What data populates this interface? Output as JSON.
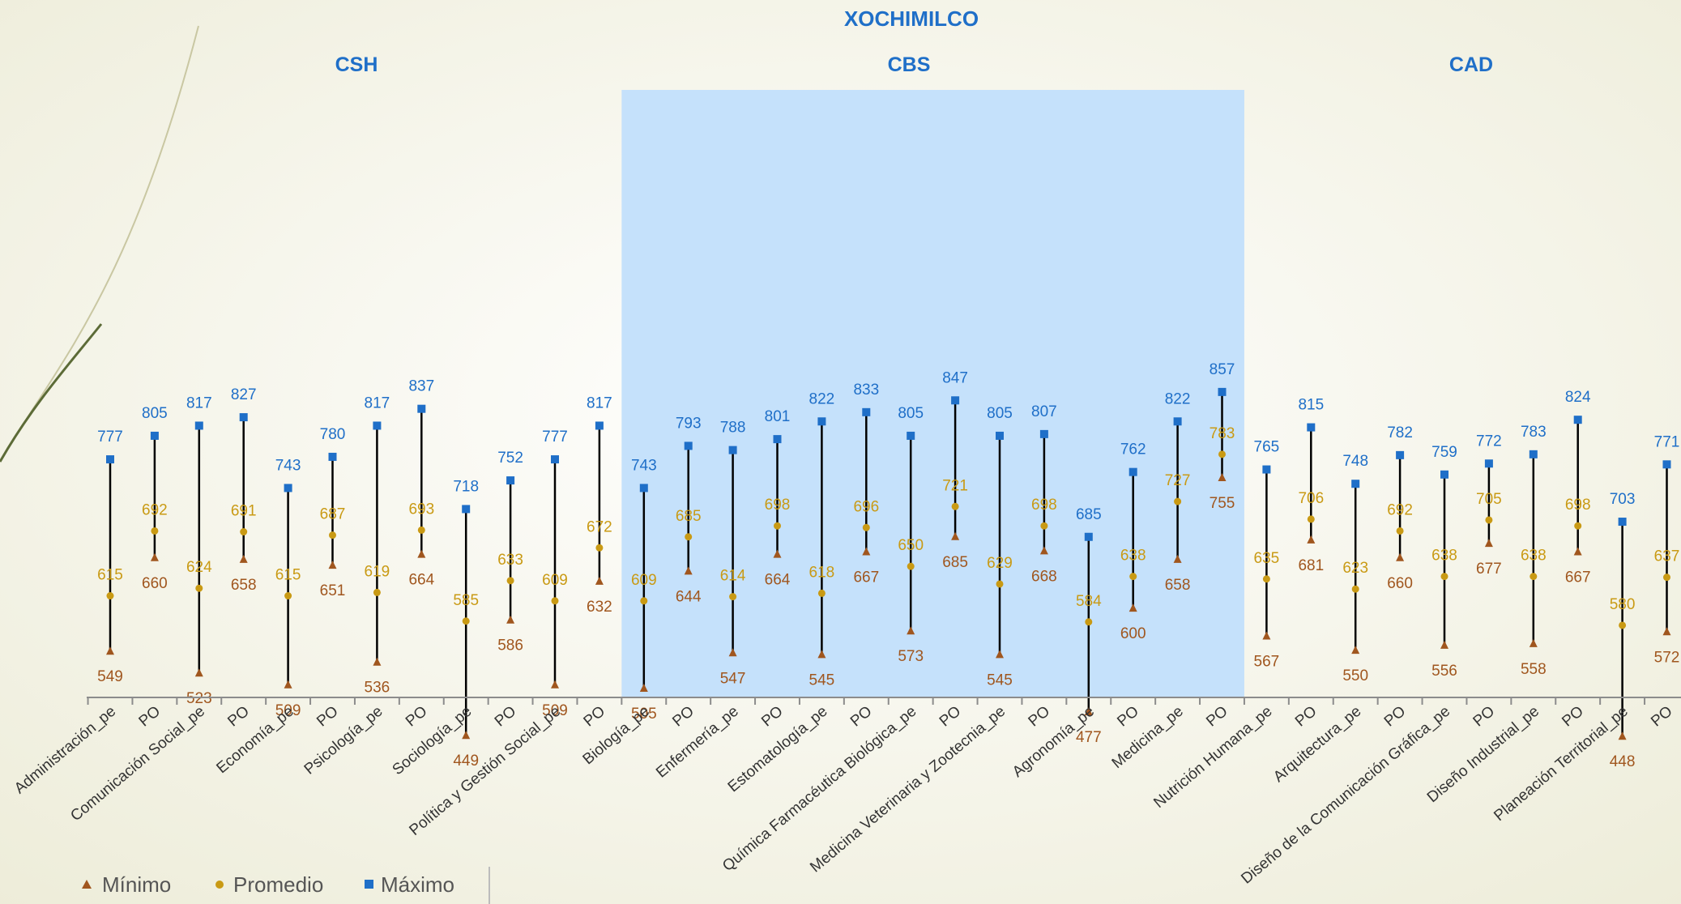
{
  "chart_data": {
    "type": "scatter",
    "title": "XOCHIMILCO",
    "groups": [
      {
        "name": "CSH",
        "from": 0,
        "to": 12
      },
      {
        "name": "CBS",
        "from": 12,
        "to": 26
      },
      {
        "name": "CAD",
        "from": 26,
        "to": 36
      }
    ],
    "categories": [
      "Administración_pe",
      "PO",
      "Comunicación Social_pe",
      "PO",
      "Economía_pe",
      "PO",
      "Psicología_pe",
      "PO",
      "Sociología_pe",
      "PO",
      "Política y Gestión Social_pe",
      "PO",
      "Biología_pe",
      "PO",
      "Enfermería_pe",
      "PO",
      "Estomatología_pe",
      "PO",
      "Química Farmacéutica Biológica_pe",
      "PO",
      "Medicina Veterinaria y Zootecnia_pe",
      "PO",
      "Agronomía_pe",
      "PO",
      "Medicina_pe",
      "PO",
      "Nutrición Humana_pe",
      "PO",
      "Arquitectura_pe",
      "PO",
      "Diseño de la Comunicación Gráfica_pe",
      "PO",
      "Diseño Industrial_pe",
      "PO",
      "Planeación Territorial_pe",
      "PO"
    ],
    "series": [
      {
        "name": "Mínimo",
        "color": "#a0561e",
        "marker": "triangle",
        "values": [
          549,
          660,
          523,
          658,
          509,
          651,
          536,
          664,
          449,
          586,
          509,
          632,
          505,
          644,
          547,
          664,
          545,
          667,
          573,
          685,
          545,
          668,
          477,
          600,
          658,
          755,
          567,
          681,
          550,
          660,
          556,
          677,
          558,
          667,
          448,
          572
        ]
      },
      {
        "name": "Promedio",
        "color": "#c99a14",
        "marker": "circle",
        "values": [
          615,
          692,
          624,
          691,
          615,
          687,
          619,
          693,
          585,
          633,
          609,
          672,
          609,
          685,
          614,
          698,
          618,
          696,
          650,
          721,
          629,
          698,
          584,
          638,
          727,
          783,
          635,
          706,
          623,
          692,
          638,
          705,
          638,
          698,
          580,
          637
        ]
      },
      {
        "name": "Máximo",
        "color": "#1f6fc8",
        "marker": "square",
        "values": [
          777,
          805,
          817,
          827,
          743,
          780,
          817,
          837,
          718,
          752,
          777,
          817,
          743,
          793,
          788,
          801,
          822,
          833,
          805,
          847,
          805,
          807,
          685,
          762,
          822,
          857,
          765,
          815,
          748,
          782,
          759,
          772,
          783,
          824,
          703,
          771
        ]
      }
    ],
    "highlight_group": "CBS",
    "legend": {
      "position": "bottom-left",
      "entries": [
        "Mínimo",
        "Promedio",
        "Máximo"
      ]
    },
    "ylim": [
      400,
      900
    ],
    "colors": {
      "title": "#1f6fc8",
      "highlight": "#c5e1fb",
      "axis": "#8c8c8c",
      "range_line": "#000000",
      "label": "#333333"
    }
  }
}
